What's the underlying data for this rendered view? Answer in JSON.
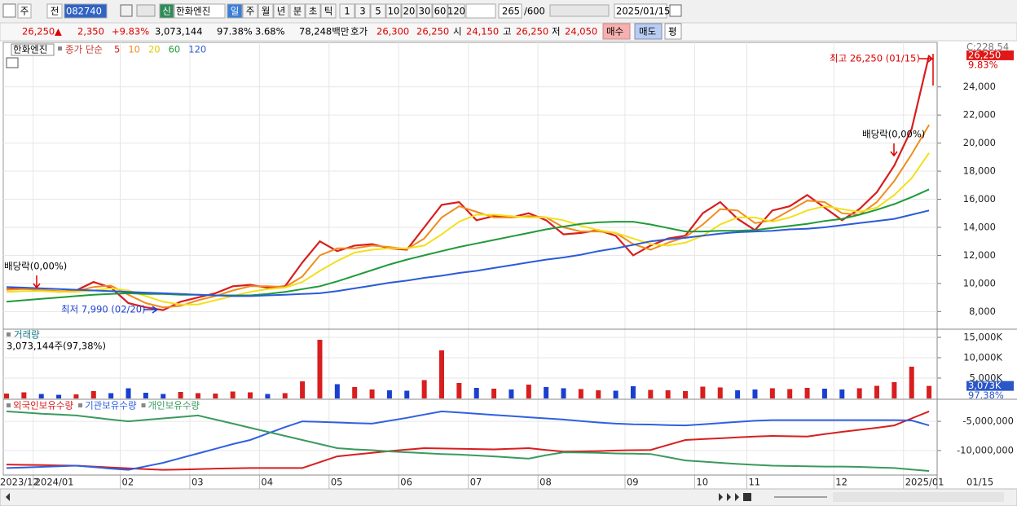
{
  "toolbar": [
    "주",
    "전",
    "082740",
    "신",
    "한화엔진",
    "일",
    "주",
    "월",
    "년",
    "분",
    "초",
    "틱",
    "1",
    "3",
    "5",
    "10",
    "20",
    "30",
    "60",
    "120",
    "265",
    "/600",
    "2025/01/15"
  ],
  "quote": [
    "26,250",
    "▲",
    "2,350",
    "+9.83%",
    "3,073,144",
    "97.38%",
    "3.68%",
    "78,248백만",
    "호가",
    "26,300",
    "26,250",
    "시",
    "24,150",
    "고",
    "26,250",
    "저",
    "24,050",
    "매수",
    "매도",
    "평"
  ],
  "chart_data": [
    {
      "type": "line",
      "title": "한화엔진",
      "subtitle": "종가 단순",
      "series": [
        {
          "name": "5",
          "color": "#d81e1e",
          "values": [
            9600,
            9650,
            9500,
            9400,
            9500,
            10100,
            9700,
            8600,
            8300,
            8100,
            8700,
            9000,
            9300,
            9800,
            9900,
            9700,
            9800,
            11500,
            13000,
            12300,
            12700,
            12800,
            12500,
            12400,
            14000,
            15600,
            15800,
            14500,
            14800,
            14700,
            15000,
            14500,
            13500,
            13600,
            13800,
            13400,
            12000,
            12700,
            13200,
            13400,
            15000,
            15800,
            14600,
            13800,
            15200,
            15500,
            16300,
            15400,
            14500,
            15300,
            16500,
            18400,
            21000,
            26250
          ]
        },
        {
          "name": "10",
          "color": "#f08c1e",
          "values": [
            9550,
            9600,
            9550,
            9450,
            9450,
            9750,
            9850,
            9200,
            8600,
            8300,
            8400,
            8800,
            9100,
            9500,
            9800,
            9800,
            9750,
            10500,
            12000,
            12500,
            12500,
            12700,
            12600,
            12450,
            13200,
            14700,
            15500,
            15100,
            14700,
            14700,
            14800,
            14700,
            14000,
            13700,
            13700,
            13600,
            12800,
            12400,
            12900,
            13300,
            14200,
            15300,
            15200,
            14300,
            14500,
            15200,
            15900,
            15800,
            15000,
            14900,
            15800,
            17300,
            19200,
            21300
          ]
        },
        {
          "name": "20",
          "color": "#f2e01a",
          "values": [
            9400,
            9450,
            9450,
            9400,
            9400,
            9500,
            9650,
            9500,
            9100,
            8700,
            8500,
            8500,
            8800,
            9100,
            9400,
            9600,
            9700,
            10100,
            10900,
            11600,
            12200,
            12400,
            12500,
            12500,
            12700,
            13500,
            14400,
            14900,
            14900,
            14800,
            14700,
            14700,
            14500,
            14100,
            13800,
            13600,
            13200,
            12800,
            12700,
            12900,
            13400,
            14200,
            14700,
            14700,
            14400,
            14700,
            15200,
            15500,
            15300,
            15100,
            15400,
            16300,
            17500,
            19300
          ]
        },
        {
          "name": "60",
          "color": "#1f9a3a",
          "values": [
            8700,
            8800,
            8900,
            9000,
            9100,
            9200,
            9250,
            9300,
            9250,
            9250,
            9200,
            9200,
            9150,
            9150,
            9150,
            9250,
            9400,
            9600,
            9800,
            10150,
            10550,
            10950,
            11350,
            11700,
            12000,
            12300,
            12600,
            12850,
            13100,
            13350,
            13600,
            13850,
            14050,
            14250,
            14350,
            14400,
            14400,
            14200,
            13950,
            13700,
            13700,
            13750,
            13750,
            13800,
            13950,
            14100,
            14250,
            14450,
            14600,
            14900,
            15250,
            15650,
            16150,
            16700
          ]
        },
        {
          "name": "120",
          "color": "#2a5bd7",
          "values": [
            9750,
            9700,
            9650,
            9600,
            9550,
            9500,
            9450,
            9400,
            9350,
            9300,
            9250,
            9200,
            9150,
            9100,
            9100,
            9150,
            9200,
            9250,
            9300,
            9450,
            9650,
            9850,
            10050,
            10200,
            10400,
            10550,
            10750,
            10900,
            11100,
            11300,
            11500,
            11700,
            11850,
            12050,
            12300,
            12500,
            12750,
            13000,
            13150,
            13250,
            13400,
            13550,
            13650,
            13700,
            13750,
            13850,
            13900,
            14000,
            14150,
            14300,
            14450,
            14600,
            14900,
            15200
          ]
        }
      ],
      "ylim": [
        6800,
        27000
      ],
      "yticks": [
        {
          "value": 8000,
          "label": "8,000"
        },
        {
          "value": 10000,
          "label": "10,000"
        },
        {
          "value": 12000,
          "label": "12,000"
        },
        {
          "value": 14000,
          "label": "14,000"
        },
        {
          "value": 16000,
          "label": "16,000"
        },
        {
          "value": 18000,
          "label": "18,000"
        },
        {
          "value": 20000,
          "label": "20,000"
        },
        {
          "value": 22000,
          "label": "22,000"
        },
        {
          "value": 24000,
          "label": "24,000"
        }
      ],
      "grid": true,
      "current": {
        "value": 26250,
        "label": "26,250"
      },
      "change_label": "9.83%",
      "top_label": "C:228.54",
      "annotations": [
        "최고 26,250 (01/15)",
        "배당락(0,00%)",
        "배당락(0,00%)",
        "최저 7,990 (02/20)"
      ]
    },
    {
      "type": "bar",
      "title": "거래량",
      "subtitle": "3,073,144주(97,38%)",
      "values": [
        1200000,
        1500000,
        1100000,
        900000,
        1000000,
        1800000,
        1300000,
        2500000,
        1400000,
        1100000,
        1600000,
        1300000,
        1200000,
        1700000,
        1500000,
        1100000,
        1300000,
        4200000,
        14400000,
        3500000,
        2800000,
        2200000,
        2000000,
        1900000,
        4500000,
        11800000,
        3800000,
        2600000,
        2400000,
        2200000,
        3400000,
        2800000,
        2500000,
        2300000,
        2000000,
        1900000,
        3000000,
        2100000,
        2000000,
        1800000,
        2900000,
        2700000,
        2000000,
        2200000,
        2500000,
        2300000,
        2600000,
        2400000,
        2200000,
        2500000,
        3100000,
        4000000,
        7800000,
        3073144
      ],
      "up_color": "#d81e1e",
      "down_color": "#1a3fd0",
      "ylim": [
        0,
        16800000
      ],
      "yticks": [
        {
          "value": 5000000,
          "label": "5,000K"
        },
        {
          "value": 10000000,
          "label": "10,000K"
        },
        {
          "value": 15000000,
          "label": "15,000K"
        }
      ],
      "current": {
        "value": 3073144,
        "label": "3,073K"
      },
      "ratio_label": "97.38%"
    },
    {
      "type": "line",
      "series": [
        {
          "name": "외국인보유수량",
          "color": "#d81e1e",
          "values": [
            -12400000,
            -12450000,
            -12500000,
            -12550000,
            -12600000,
            -12750000,
            -12900000,
            -13050000,
            -13200000,
            -13300000,
            -13250000,
            -13200000,
            -13100000,
            -13050000,
            -13000000,
            -13000000,
            -13000000,
            -13000000,
            -12000000,
            -11000000,
            -10700000,
            -10400000,
            -10100000,
            -9850000,
            -9600000,
            -9650000,
            -9700000,
            -9750000,
            -9800000,
            -9700000,
            -9600000,
            -9900000,
            -10200000,
            -10150000,
            -10100000,
            -10000000,
            -9950000,
            -9900000,
            -9050000,
            -8200000,
            -8050000,
            -7900000,
            -7750000,
            -7600000,
            -7500000,
            -7550000,
            -7600000,
            -7200000,
            -6800000,
            -6450000,
            -6100000,
            -5700000,
            -4500000,
            -3300000
          ]
        },
        {
          "name": "기관보유수량",
          "color": "#3060e0",
          "values": [
            -13000000,
            -12900000,
            -12800000,
            -12700000,
            -12600000,
            -12850000,
            -13100000,
            -13300000,
            -12700000,
            -12100000,
            -11300000,
            -10500000,
            -9700000,
            -8900000,
            -8200000,
            -7100000,
            -6000000,
            -5000000,
            -5100000,
            -5200000,
            -5300000,
            -5400000,
            -4900000,
            -4400000,
            -3850000,
            -3300000,
            -3500000,
            -3700000,
            -3900000,
            -4100000,
            -4300000,
            -4500000,
            -4700000,
            -4950000,
            -5200000,
            -5400000,
            -5500000,
            -5550000,
            -5650000,
            -5700000,
            -5500000,
            -5300000,
            -5100000,
            -4900000,
            -4800000,
            -4800000,
            -4800000,
            -4800000,
            -4800000,
            -4800000,
            -4800000,
            -4800000,
            -4850000,
            -5700000
          ]
        },
        {
          "name": "개인보유수량",
          "color": "#3a9a5e",
          "values": [
            -3300000,
            -3500000,
            -3700000,
            -3850000,
            -4000000,
            -4350000,
            -4700000,
            -5000000,
            -4750000,
            -4500000,
            -4250000,
            -4000000,
            -4700000,
            -5400000,
            -6100000,
            -6800000,
            -7500000,
            -8200000,
            -8900000,
            -9600000,
            -9800000,
            -9950000,
            -10150000,
            -10300000,
            -10450000,
            -10600000,
            -10700000,
            -10850000,
            -11000000,
            -11200000,
            -11400000,
            -10800000,
            -10300000,
            -10350000,
            -10400000,
            -10500000,
            -10550000,
            -10600000,
            -11150000,
            -11700000,
            -11900000,
            -12100000,
            -12300000,
            -12450000,
            -12600000,
            -12650000,
            -12700000,
            -12750000,
            -12750000,
            -12800000,
            -12900000,
            -13000000,
            -13250000,
            -13500000
          ]
        }
      ],
      "categories": [
        "2023/12",
        null,
        "2024/01",
        null,
        null,
        null,
        null,
        "02",
        null,
        null,
        null,
        "03",
        null,
        null,
        null,
        "04",
        null,
        null,
        null,
        "05",
        null,
        null,
        null,
        "06",
        null,
        null,
        null,
        "07",
        null,
        null,
        null,
        "08",
        null,
        null,
        null,
        null,
        "09",
        null,
        null,
        null,
        "10",
        null,
        null,
        "11",
        null,
        null,
        null,
        null,
        "12",
        null,
        null,
        null,
        "2025/01",
        null
      ],
      "ylim": [
        -14200000,
        -1500000
      ],
      "yticks": [
        {
          "value": -5000000,
          "label": "-5,000,000"
        },
        {
          "value": -10000000,
          "label": "-10,000,000"
        }
      ],
      "date_label": "01/15"
    }
  ]
}
